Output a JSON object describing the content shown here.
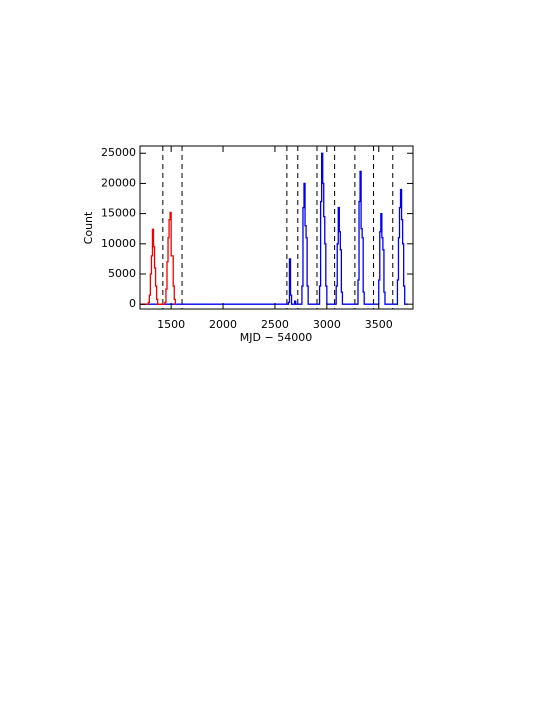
{
  "chart_data": {
    "type": "step",
    "xlabel": "MJD − 54000",
    "ylabel": "Count",
    "xlim": [
      1200,
      3830
    ],
    "ylim": [
      -800,
      26200
    ],
    "xticks": [
      1500,
      2000,
      2500,
      3000,
      3500
    ],
    "yticks": [
      0,
      5000,
      10000,
      15000,
      20000,
      25000
    ],
    "vlines": [
      1420,
      1605,
      2615,
      2720,
      2905,
      3075,
      3270,
      3450,
      3635
    ],
    "series": [
      {
        "color": "#0000ee",
        "x": [
          1200,
          2630,
          2640,
          2650,
          2660,
          2690,
          2700,
          2710,
          2760,
          2770,
          2780,
          2790,
          2800,
          2810,
          2820,
          2930,
          2940,
          2950,
          2960,
          2970,
          2980,
          2990,
          3000,
          3090,
          3100,
          3110,
          3120,
          3130,
          3140,
          3150,
          3300,
          3310,
          3320,
          3330,
          3340,
          3350,
          3360,
          3500,
          3510,
          3520,
          3530,
          3540,
          3550,
          3560,
          3680,
          3690,
          3700,
          3710,
          3720,
          3730,
          3740,
          3750,
          3780
        ],
        "values": [
          0,
          300,
          7500,
          1500,
          0,
          500,
          0,
          0,
          3000,
          16000,
          20000,
          13000,
          11000,
          3000,
          0,
          3000,
          17000,
          25000,
          20000,
          14500,
          10000,
          3000,
          0,
          3000,
          10000,
          16000,
          12000,
          9000,
          2000,
          0,
          4000,
          17000,
          22000,
          12500,
          11000,
          2000,
          0,
          4000,
          12000,
          15000,
          11000,
          9000,
          2000,
          0,
          4000,
          11000,
          16000,
          19000,
          14000,
          10000,
          3000,
          0,
          0
        ]
      },
      {
        "color": "#ee0000",
        "x": [
          1200,
          1280,
          1290,
          1300,
          1310,
          1320,
          1330,
          1340,
          1350,
          1360,
          1370,
          1440,
          1450,
          1460,
          1470,
          1480,
          1490,
          1500,
          1510,
          1520,
          1530,
          1540,
          1550
        ],
        "values": [
          0,
          300,
          1500,
          5000,
          8000,
          12400,
          9500,
          6000,
          3000,
          800,
          0,
          300,
          2500,
          7000,
          11000,
          14000,
          15200,
          8000,
          8000,
          3000,
          800,
          0,
          0
        ]
      }
    ]
  }
}
